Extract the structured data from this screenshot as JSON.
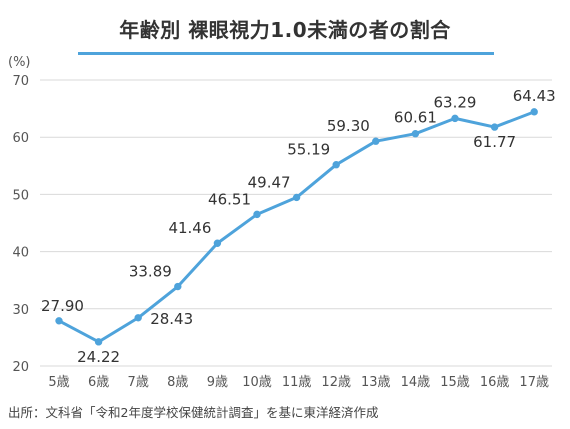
{
  "chart_data": {
    "type": "line",
    "title": "年齢別 裸眼視力1.0未満の者の割合",
    "unit_label": "(%)",
    "categories": [
      "5歳",
      "6歳",
      "7歳",
      "8歳",
      "9歳",
      "10歳",
      "11歳",
      "12歳",
      "13歳",
      "14歳",
      "15歳",
      "16歳",
      "17歳"
    ],
    "values": [
      27.9,
      24.22,
      28.43,
      33.89,
      41.46,
      46.51,
      49.47,
      55.19,
      59.3,
      60.61,
      63.29,
      61.77,
      64.43
    ],
    "data_labels": [
      "27.90",
      "24.22",
      "28.43",
      "33.89",
      "41.46",
      "46.51",
      "49.47",
      "55.19",
      "59.30",
      "60.61",
      "63.29",
      "61.77",
      "64.43"
    ],
    "ylim": [
      20,
      70
    ],
    "yticks": [
      20,
      30,
      40,
      50,
      60,
      70
    ],
    "grid": true,
    "line_color": "#4ea3db",
    "grid_color": "#d9d9d9",
    "source": "出所：文科省「令和2年度学校保健統計調査」を基に東洋経済作成"
  }
}
